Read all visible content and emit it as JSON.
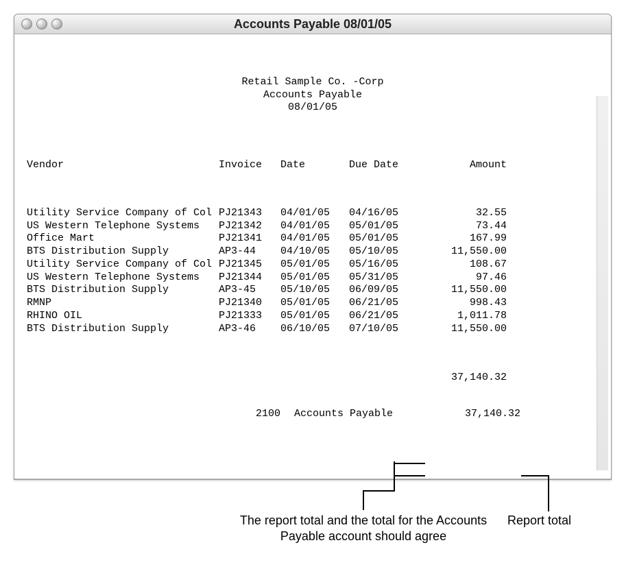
{
  "window": {
    "title": "Accounts Payable 08/01/05"
  },
  "report": {
    "company": "Retail Sample Co. -Corp",
    "title": "Accounts Payable",
    "date": "08/01/05"
  },
  "columns": {
    "vendor": "Vendor",
    "invoice": "Invoice",
    "date": "Date",
    "duedate": "Due Date",
    "amount": "Amount"
  },
  "rows": [
    {
      "vendor": "Utility Service Company of Col",
      "invoice": "PJ21343",
      "date": "04/01/05",
      "duedate": "04/16/05",
      "amount": "32.55"
    },
    {
      "vendor": "US Western Telephone Systems",
      "invoice": "PJ21342",
      "date": "04/01/05",
      "duedate": "05/01/05",
      "amount": "73.44"
    },
    {
      "vendor": "Office Mart",
      "invoice": "PJ21341",
      "date": "04/01/05",
      "duedate": "05/01/05",
      "amount": "167.99"
    },
    {
      "vendor": "BTS Distribution Supply",
      "invoice": "AP3-44",
      "date": "04/10/05",
      "duedate": "05/10/05",
      "amount": "11,550.00"
    },
    {
      "vendor": "Utility Service Company of Col",
      "invoice": "PJ21345",
      "date": "05/01/05",
      "duedate": "05/16/05",
      "amount": "108.67"
    },
    {
      "vendor": "US Western Telephone Systems",
      "invoice": "PJ21344",
      "date": "05/01/05",
      "duedate": "05/31/05",
      "amount": "97.46"
    },
    {
      "vendor": "BTS Distribution Supply",
      "invoice": "AP3-45",
      "date": "05/10/05",
      "duedate": "06/09/05",
      "amount": "11,550.00"
    },
    {
      "vendor": "RMNP",
      "invoice": "PJ21340",
      "date": "05/01/05",
      "duedate": "06/21/05",
      "amount": "998.43"
    },
    {
      "vendor": "RHINO OIL",
      "invoice": "PJ21333",
      "date": "05/01/05",
      "duedate": "06/21/05",
      "amount": "1,011.78"
    },
    {
      "vendor": "BTS Distribution Supply",
      "invoice": "AP3-46",
      "date": "06/10/05",
      "duedate": "07/10/05",
      "amount": "11,550.00"
    }
  ],
  "totals": {
    "account_code": "2100",
    "account_label": "Accounts Payable",
    "subtotal": "37,140.32",
    "report_total": "37,140.32"
  },
  "callouts": {
    "left": "The report total and the total for the\nAccounts Payable account should agree",
    "right": "Report total"
  }
}
